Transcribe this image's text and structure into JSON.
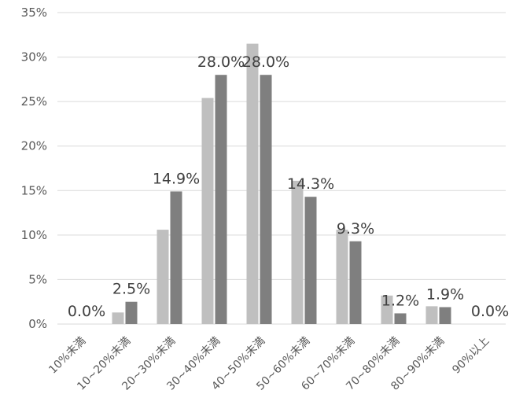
{
  "chart_data": {
    "type": "bar",
    "categories": [
      "10%未満",
      "10~20%未満",
      "20~30%未満",
      "30~40%未満",
      "40~50%未満",
      "50~60%未満",
      "60~70%未満",
      "70~80%未満",
      "80~90%未満",
      "90%以上"
    ],
    "series": [
      {
        "values": [
          0.0,
          1.3,
          10.6,
          25.4,
          31.5,
          16.1,
          10.6,
          3.2,
          2.0,
          0.0
        ],
        "color": "#bfbfbf",
        "show_labels": false
      },
      {
        "values": [
          0.0,
          2.5,
          14.9,
          28.0,
          28.0,
          14.3,
          9.3,
          1.2,
          1.9,
          0.0
        ],
        "color": "#7f7f7f",
        "show_labels": true
      }
    ],
    "data_labels": [
      "0.0%",
      "2.5%",
      "14.9%",
      "28.0%",
      "28.0%",
      "14.3%",
      "9.3%",
      "1.2%",
      "1.9%",
      "0.0%"
    ],
    "y_ticks": [
      "0%",
      "5%",
      "10%",
      "15%",
      "20%",
      "25%",
      "30%",
      "35%"
    ],
    "ylim": [
      0,
      35
    ],
    "grid": true,
    "gridline_color": "#d9d9d9",
    "title": "",
    "xlabel": "",
    "ylabel": ""
  }
}
